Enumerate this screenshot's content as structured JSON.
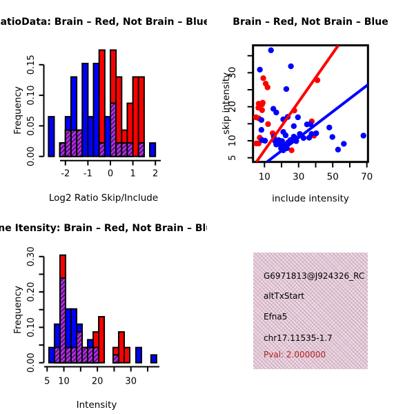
{
  "figure": {
    "background": "#ffffff"
  },
  "chart_data": [
    {
      "id": "log2_ratio_histogram",
      "type": "bar",
      "title": "RatioData: Brain – Red, Not Brain – Blue",
      "xlabel": "Log2 Ratio Skip/Include",
      "ylabel": "Frequency",
      "xlim": [
        -2.9,
        2.25
      ],
      "ylim": [
        0,
        0.18
      ],
      "grid": false,
      "xticks": [
        -2,
        -1,
        0,
        1,
        2
      ],
      "xtick_labels": [
        "-2",
        "-1",
        "0",
        "1",
        "2"
      ],
      "yticks": [
        0,
        0.05,
        0.1,
        0.15
      ],
      "ytick_labels": [
        "0.00",
        "0.05",
        "0.10",
        "0.15"
      ],
      "bin_width": 0.25,
      "legend_note": "Brain = red, Not Brain = blue, overlap = purple hatch",
      "colors": {
        "red": "#ff0000",
        "blue": "#0000ff",
        "overlap_base": "#5b0f9b",
        "overlap_stripe": "#c03ad2"
      },
      "bars": [
        {
          "x": -2.75,
          "blue": 0.065,
          "red": 0,
          "overlap": 0
        },
        {
          "x": -2.25,
          "blue": 0.022,
          "red": 0.022,
          "overlap": 0.022
        },
        {
          "x": -2.0,
          "blue": 0.065,
          "red": 0.043,
          "overlap": 0.043
        },
        {
          "x": -1.75,
          "blue": 0.13,
          "red": 0.043,
          "overlap": 0.043
        },
        {
          "x": -1.5,
          "blue": 0.043,
          "red": 0.043,
          "overlap": 0.043
        },
        {
          "x": -1.25,
          "blue": 0.152,
          "red": 0,
          "overlap": 0
        },
        {
          "x": -1.0,
          "blue": 0.065,
          "red": 0,
          "overlap": 0
        },
        {
          "x": -0.75,
          "blue": 0.152,
          "red": 0,
          "overlap": 0
        },
        {
          "x": -0.5,
          "blue": 0.022,
          "red": 0.174,
          "overlap": 0.022
        },
        {
          "x": -0.25,
          "blue": 0.065,
          "red": 0,
          "overlap": 0
        },
        {
          "x": 0.0,
          "blue": 0.087,
          "red": 0.174,
          "overlap": 0.087
        },
        {
          "x": 0.25,
          "blue": 0.022,
          "red": 0.13,
          "overlap": 0.022
        },
        {
          "x": 0.5,
          "blue": 0.022,
          "red": 0.043,
          "overlap": 0.022
        },
        {
          "x": 0.75,
          "blue": 0.022,
          "red": 0.087,
          "overlap": 0.022
        },
        {
          "x": 1.0,
          "blue": 0,
          "red": 0.13,
          "overlap": 0
        },
        {
          "x": 1.25,
          "blue": 0.022,
          "red": 0.13,
          "overlap": 0.022
        },
        {
          "x": 1.75,
          "blue": 0.022,
          "red": 0,
          "overlap": 0
        }
      ]
    },
    {
      "id": "intensity_scatter",
      "type": "scatter",
      "title": "Brain – Red, Not Brain – Blue",
      "xlabel": "include intensity",
      "ylabel": "skip intensity",
      "xlim": [
        3.4,
        70.7
      ],
      "ylim": [
        3.8,
        38.1
      ],
      "grid": false,
      "xticks": [
        10,
        20,
        30,
        40,
        50,
        60,
        70
      ],
      "xtick_labels": [
        "10",
        "",
        "30",
        "",
        "50",
        "",
        "70"
      ],
      "yticks": [
        5,
        10,
        15,
        20,
        25,
        30,
        35
      ],
      "ytick_labels": [
        "5",
        "10",
        "",
        "20",
        "",
        "30",
        ""
      ],
      "series": [
        {
          "name": "Brain",
          "color": "#ff0000",
          "points": [
            [
              9.3,
              28.4
            ],
            [
              10.7,
              26.8
            ],
            [
              11.8,
              25.7
            ],
            [
              41,
              27.8
            ],
            [
              6.6,
              20.9
            ],
            [
              8.6,
              20.7
            ],
            [
              6.4,
              19.7
            ],
            [
              8.6,
              19.0
            ],
            [
              9.0,
              21.2
            ],
            [
              6.6,
              16.6
            ],
            [
              5.0,
              16.9
            ],
            [
              12.1,
              14.9
            ],
            [
              14.8,
              12.2
            ],
            [
              7.2,
              10.9
            ],
            [
              5.2,
              9.2
            ],
            [
              6.6,
              9.2
            ],
            [
              27.5,
              18.9
            ],
            [
              37.7,
              15.7
            ],
            [
              39.0,
              11.5
            ],
            [
              25.9,
              7.2
            ]
          ]
        },
        {
          "name": "Not Brain",
          "color": "#0000ff",
          "points": [
            [
              13.8,
              36.6
            ],
            [
              7.3,
              30.9
            ],
            [
              25.5,
              31.9
            ],
            [
              22.8,
              25.2
            ],
            [
              8.2,
              16.1
            ],
            [
              15.2,
              19.4
            ],
            [
              16.9,
              18.3
            ],
            [
              21.0,
              16.3
            ],
            [
              23.6,
              17.0
            ],
            [
              29.6,
              16.9
            ],
            [
              27.2,
              14.3
            ],
            [
              21.0,
              12.6
            ],
            [
              22.4,
              11.6
            ],
            [
              8.2,
              13.2
            ],
            [
              8.6,
              10.2
            ],
            [
              10.3,
              10.0
            ],
            [
              15.5,
              11.2
            ],
            [
              16.2,
              9.9
            ],
            [
              16.9,
              8.9
            ],
            [
              18.3,
              10.2
            ],
            [
              19.0,
              8.9
            ],
            [
              19.7,
              7.8
            ],
            [
              20.3,
              9.9
            ],
            [
              21.0,
              7.2
            ],
            [
              21.7,
              8.9
            ],
            [
              23.1,
              7.8
            ],
            [
              23.8,
              9.5
            ],
            [
              25.2,
              10.2
            ],
            [
              27.2,
              11.2
            ],
            [
              28.6,
              9.9
            ],
            [
              28.2,
              10.8
            ],
            [
              30.7,
              12.0
            ],
            [
              32.9,
              10.8
            ],
            [
              34.9,
              14.8
            ],
            [
              36.9,
              14.9
            ],
            [
              36.2,
              10.9
            ],
            [
              37.6,
              12.0
            ],
            [
              40.3,
              12.2
            ],
            [
              48.0,
              13.9
            ],
            [
              49.8,
              11.1
            ],
            [
              53.1,
              7.4
            ],
            [
              56.5,
              9.1
            ],
            [
              68.0,
              11.5
            ]
          ]
        }
      ],
      "fit_lines": [
        {
          "series": "Brain",
          "color": "#ff0000",
          "from": [
            5.3,
            3.8
          ],
          "to": [
            53.2,
            38.0
          ]
        },
        {
          "series": "Not Brain",
          "color": "#0000ff",
          "from": [
            11.5,
            3.8
          ],
          "to": [
            70.7,
            26.5
          ]
        }
      ]
    },
    {
      "id": "gene_intensity_histogram",
      "type": "bar",
      "title": "Gene Itensity: Brain – Red, Not Brain – Blue",
      "xlabel": "Intensity",
      "ylabel": "Frequency",
      "xlim": [
        4.5,
        38.5
      ],
      "ylim": [
        0,
        0.31
      ],
      "grid": false,
      "xticks": [
        5,
        10,
        15,
        20,
        25,
        30,
        35
      ],
      "xtick_labels": [
        "5",
        "10",
        "",
        "20",
        "",
        "30",
        ""
      ],
      "yticks": [
        0,
        0.05,
        0.1,
        0.15,
        0.2,
        0.25,
        0.3
      ],
      "ytick_labels": [
        "0.00",
        "",
        "0.10",
        "",
        "0.20",
        "",
        "0.30"
      ],
      "bin_width": 1.65,
      "legend_note": "Brain = red, Not Brain = blue, overlap = purple hatch",
      "colors": {
        "red": "#ff0000",
        "blue": "#0000ff",
        "overlap_base": "#5b0f9b",
        "overlap_stripe": "#c03ad2"
      },
      "bars": [
        {
          "x": 5.55,
          "blue": 0.043,
          "red": 0,
          "overlap": 0
        },
        {
          "x": 7.2,
          "blue": 0.109,
          "red": 0.043,
          "overlap": 0.043
        },
        {
          "x": 8.85,
          "blue": 0.239,
          "red": 0.304,
          "overlap": 0.239
        },
        {
          "x": 10.5,
          "blue": 0.152,
          "red": 0.043,
          "overlap": 0.043
        },
        {
          "x": 12.15,
          "blue": 0.152,
          "red": 0.043,
          "overlap": 0.043
        },
        {
          "x": 13.8,
          "blue": 0.109,
          "red": 0.087,
          "overlap": 0.087
        },
        {
          "x": 15.45,
          "blue": 0.043,
          "red": 0.043,
          "overlap": 0.043
        },
        {
          "x": 17.1,
          "blue": 0.065,
          "red": 0.043,
          "overlap": 0.043
        },
        {
          "x": 18.75,
          "blue": 0.043,
          "red": 0.087,
          "overlap": 0.043
        },
        {
          "x": 20.4,
          "blue": 0,
          "red": 0.13,
          "overlap": 0
        },
        {
          "x": 24.7,
          "blue": 0.022,
          "red": 0.043,
          "overlap": 0.022
        },
        {
          "x": 26.35,
          "blue": 0,
          "red": 0.087,
          "overlap": 0
        },
        {
          "x": 28.0,
          "blue": 0,
          "red": 0.043,
          "overlap": 0
        },
        {
          "x": 31.5,
          "blue": 0.043,
          "red": 0,
          "overlap": 0
        },
        {
          "x": 36.0,
          "blue": 0.022,
          "red": 0,
          "overlap": 0
        }
      ]
    }
  ],
  "info_box": {
    "gene_id": "G6971813@J924326_RC",
    "event_type": "altTxStart",
    "gene_symbol": "Efna5",
    "location": "chr17.11535-1.7",
    "pval": "Pval: 2.000000",
    "bg_color": "#f3d3ec",
    "pval_color": "#b22222"
  }
}
